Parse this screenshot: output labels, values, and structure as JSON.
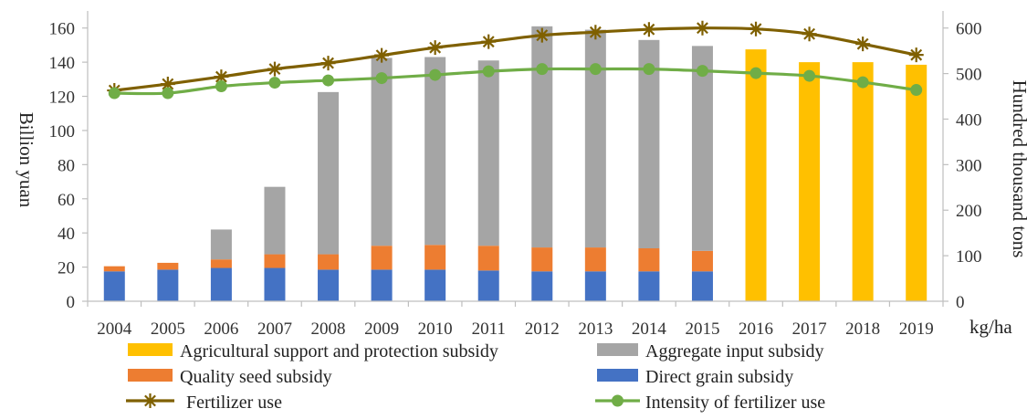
{
  "chart_data": {
    "type": "bar",
    "stacked": true,
    "categories": [
      "2004",
      "2005",
      "2006",
      "2007",
      "2008",
      "2009",
      "2010",
      "2011",
      "2012",
      "2013",
      "2014",
      "2015",
      "2016",
      "2017",
      "2018",
      "2019"
    ],
    "ylabel_left": "Billion yuan",
    "ylabel_right": "Hundred thousand tons",
    "right_axis_unit_label": "kg/ha",
    "ylim_left": [
      0,
      170
    ],
    "ylim_right": [
      0,
      637.5
    ],
    "yticks_left": [
      0,
      20,
      40,
      60,
      80,
      100,
      120,
      140,
      160
    ],
    "yticks_right": [
      0,
      100,
      200,
      300,
      400,
      500,
      600
    ],
    "grid": false,
    "legend_position": "bottom",
    "bar_series": [
      {
        "name": "Direct grain subsidy",
        "color": "#4472C4",
        "values": [
          17.5,
          18.5,
          19.5,
          19.5,
          18.5,
          18.5,
          18.5,
          18,
          17.5,
          17.5,
          17.5,
          17.5,
          0,
          0,
          0,
          0
        ]
      },
      {
        "name": "Quality seed subsidy",
        "color": "#ED7D31",
        "values": [
          3,
          4,
          5,
          8,
          9,
          14,
          14.5,
          14.5,
          14,
          14,
          13.5,
          12,
          0,
          0,
          0,
          0
        ]
      },
      {
        "name": "Aggregate input subsidy",
        "color": "#A5A5A5",
        "values": [
          0,
          0,
          17.5,
          39.5,
          95,
          110,
          110,
          108.5,
          129.5,
          127.5,
          122,
          120,
          0,
          0,
          0,
          0
        ]
      },
      {
        "name": "Agricultural support and protection subsidy",
        "color": "#FFC000",
        "values": [
          0,
          0,
          0,
          0,
          0,
          0,
          0,
          0,
          0,
          0,
          0,
          0,
          147.5,
          140,
          140,
          138.5
        ]
      }
    ],
    "line_series": [
      {
        "name": "Fertilizer use",
        "color": "#7F6000",
        "marker": "star",
        "axis": "right",
        "values": [
          463,
          477,
          493,
          510,
          523,
          540,
          557,
          570,
          584,
          591,
          597,
          600,
          598,
          587,
          565,
          541
        ]
      },
      {
        "name": "Intensity of fertilizer use",
        "color": "#70AD47",
        "marker": "circle",
        "axis": "right",
        "values": [
          457,
          457,
          472,
          480,
          485,
          490,
          497,
          505,
          510,
          510,
          510,
          506,
          501,
          495,
          481,
          464
        ]
      }
    ],
    "legend": [
      {
        "label": "Agricultural support and protection subsidy",
        "color": "#FFC000",
        "kind": "bar"
      },
      {
        "label": "Aggregate input subsidy",
        "color": "#A5A5A5",
        "kind": "bar"
      },
      {
        "label": "Quality seed subsidy",
        "color": "#ED7D31",
        "kind": "bar"
      },
      {
        "label": "Direct grain subsidy",
        "color": "#4472C4",
        "kind": "bar"
      },
      {
        "label": "Fertilizer use",
        "color": "#7F6000",
        "kind": "line-star"
      },
      {
        "label": "Intensity of fertilizer use",
        "color": "#70AD47",
        "kind": "line-circle"
      }
    ]
  }
}
